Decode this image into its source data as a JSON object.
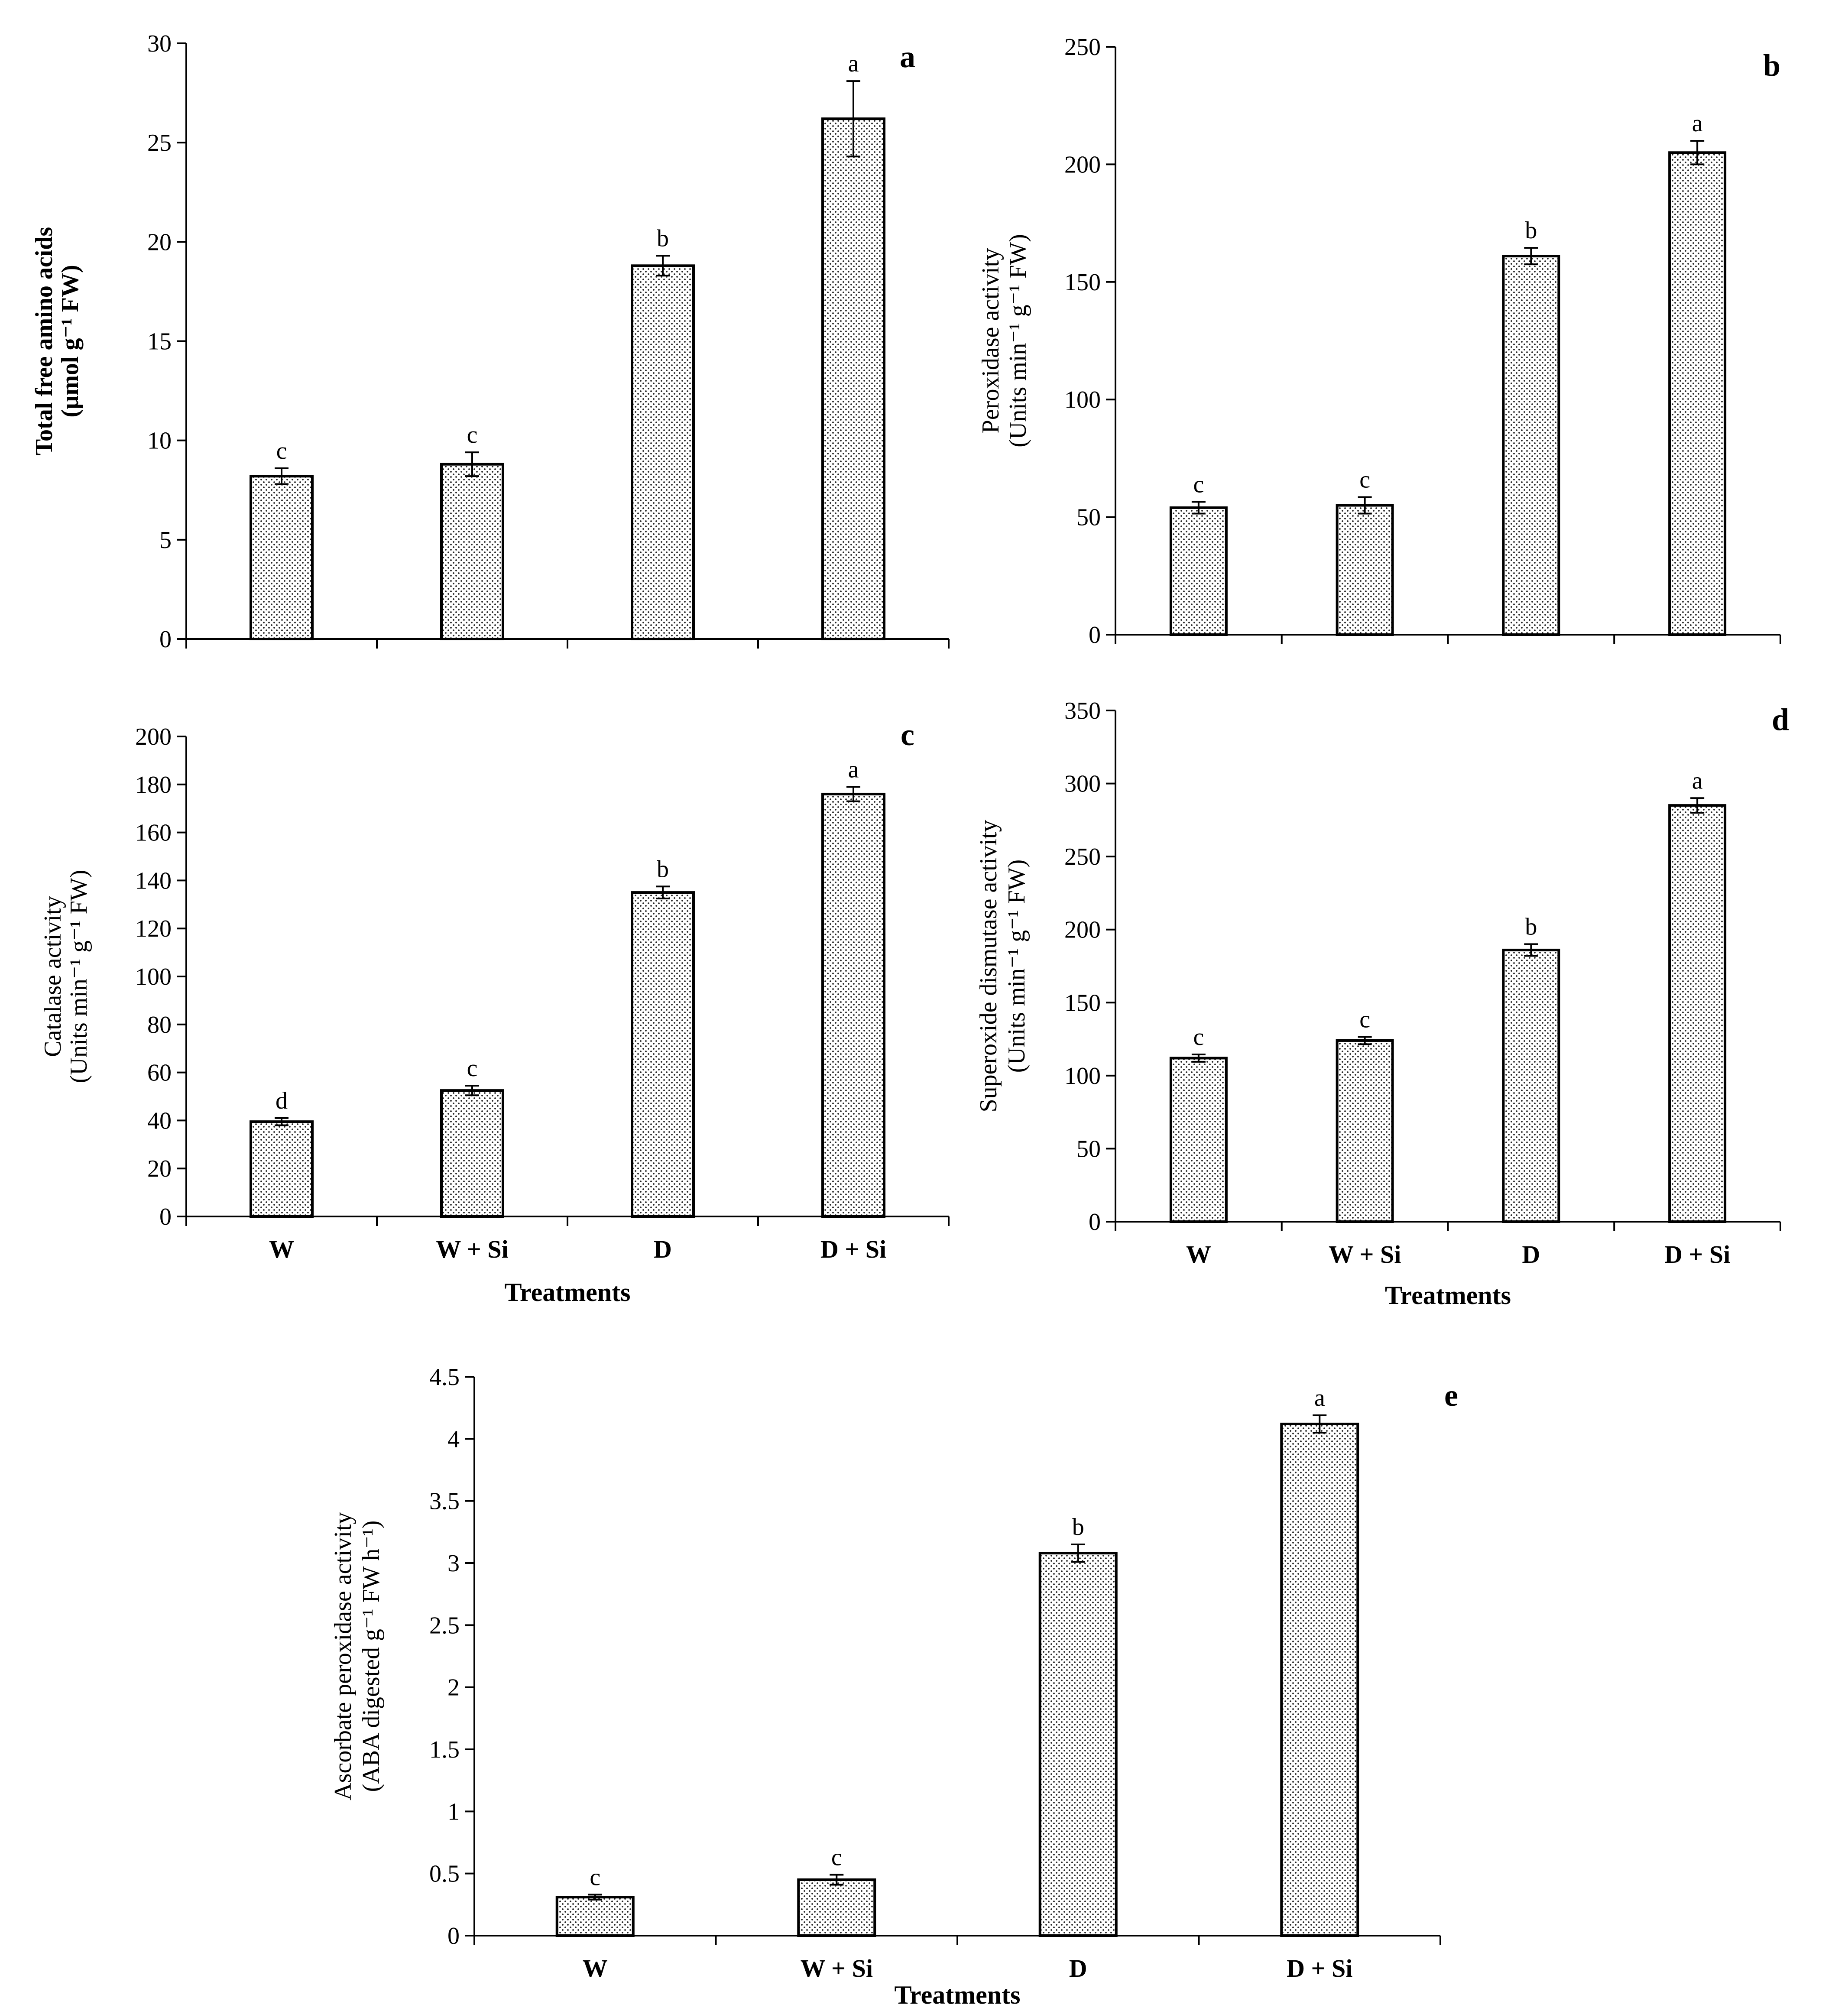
{
  "chart_data": [
    {
      "id": "a",
      "type": "bar",
      "panel_letter": "a",
      "title": "",
      "categories": [
        "W",
        "W + Si",
        "D",
        "D + Si"
      ],
      "values": [
        8.2,
        8.8,
        18.8,
        26.2
      ],
      "errors": [
        0.4,
        0.6,
        0.5,
        1.9
      ],
      "significance": [
        "c",
        "c",
        "b",
        "a"
      ],
      "ylabel_lines": [
        "Total free amino acids",
        "(µmol g⁻¹ FW)"
      ],
      "ylabel_bold": true,
      "xlabel": "",
      "show_category_labels": false,
      "ylim": [
        0,
        30
      ],
      "yticks": [
        0,
        5,
        10,
        15,
        20,
        25,
        30
      ],
      "ytick_labels": [
        "0",
        "5",
        "10",
        "15",
        "20",
        "25",
        "30"
      ],
      "grid": false
    },
    {
      "id": "b",
      "type": "bar",
      "panel_letter": "b",
      "title": "",
      "categories": [
        "W",
        "W + Si",
        "D",
        "D + Si"
      ],
      "values": [
        54,
        55,
        161,
        205
      ],
      "errors": [
        2.5,
        3.5,
        3.5,
        5
      ],
      "significance": [
        "c",
        "c",
        "b",
        "a"
      ],
      "ylabel_lines": [
        "Peroxidase activity",
        "(Units min⁻¹ g⁻¹ FW)"
      ],
      "ylabel_bold": false,
      "xlabel": "",
      "show_category_labels": false,
      "ylim": [
        0,
        250
      ],
      "yticks": [
        0,
        50,
        100,
        150,
        200,
        250
      ],
      "ytick_labels": [
        "0",
        "50",
        "100",
        "150",
        "200",
        "250"
      ],
      "grid": false
    },
    {
      "id": "c",
      "type": "bar",
      "panel_letter": "c",
      "title": "",
      "categories": [
        "W",
        "W + Si",
        "D",
        "D + Si"
      ],
      "values": [
        39.5,
        52.5,
        135,
        176
      ],
      "errors": [
        1.5,
        2,
        2.5,
        3
      ],
      "significance": [
        "d",
        "c",
        "b",
        "a"
      ],
      "ylabel_lines": [
        "Catalase activity",
        "(Units min⁻¹ g⁻¹ FW)"
      ],
      "ylabel_bold": false,
      "xlabel": "Treatments",
      "show_category_labels": true,
      "ylim": [
        0,
        200
      ],
      "yticks": [
        0,
        20,
        40,
        60,
        80,
        100,
        120,
        140,
        160,
        180,
        200
      ],
      "ytick_labels": [
        "0",
        "20",
        "40",
        "60",
        "80",
        "100",
        "120",
        "140",
        "160",
        "180",
        "200"
      ],
      "grid": false
    },
    {
      "id": "d",
      "type": "bar",
      "panel_letter": "d",
      "title": "",
      "categories": [
        "W",
        "W + Si",
        "D",
        "D + Si"
      ],
      "values": [
        112,
        124,
        186,
        285
      ],
      "errors": [
        2.5,
        2.5,
        4,
        5
      ],
      "significance": [
        "c",
        "c",
        "b",
        "a"
      ],
      "ylabel_lines": [
        "Superoxide dismutase activity",
        "(Units min⁻¹ g⁻¹ FW)"
      ],
      "ylabel_bold": false,
      "xlabel": "Treatments",
      "show_category_labels": true,
      "ylim": [
        0,
        350
      ],
      "yticks": [
        0,
        50,
        100,
        150,
        200,
        250,
        300,
        350
      ],
      "ytick_labels": [
        "0",
        "50",
        "100",
        "150",
        "200",
        "250",
        "300",
        "350"
      ],
      "grid": false
    },
    {
      "id": "e",
      "type": "bar",
      "panel_letter": "e",
      "title": "",
      "categories": [
        "W",
        "W + Si",
        "D",
        "D + Si"
      ],
      "values": [
        0.31,
        0.45,
        3.08,
        4.12
      ],
      "errors": [
        0.02,
        0.04,
        0.07,
        0.07
      ],
      "significance": [
        "c",
        "c",
        "b",
        "a"
      ],
      "ylabel_lines": [
        "Ascorbate peroxidase activity",
        "(ABA digested g⁻¹ FW h⁻¹)"
      ],
      "ylabel_bold": false,
      "xlabel": "Treatments",
      "show_category_labels": true,
      "ylim": [
        0,
        4.5
      ],
      "yticks": [
        0,
        0.5,
        1,
        1.5,
        2,
        2.5,
        3,
        3.5,
        4,
        4.5
      ],
      "ytick_labels": [
        "0",
        "0.5",
        "1",
        "1.5",
        "2",
        "2.5",
        "3",
        "3.5",
        "4",
        "4.5"
      ],
      "grid": false
    }
  ]
}
